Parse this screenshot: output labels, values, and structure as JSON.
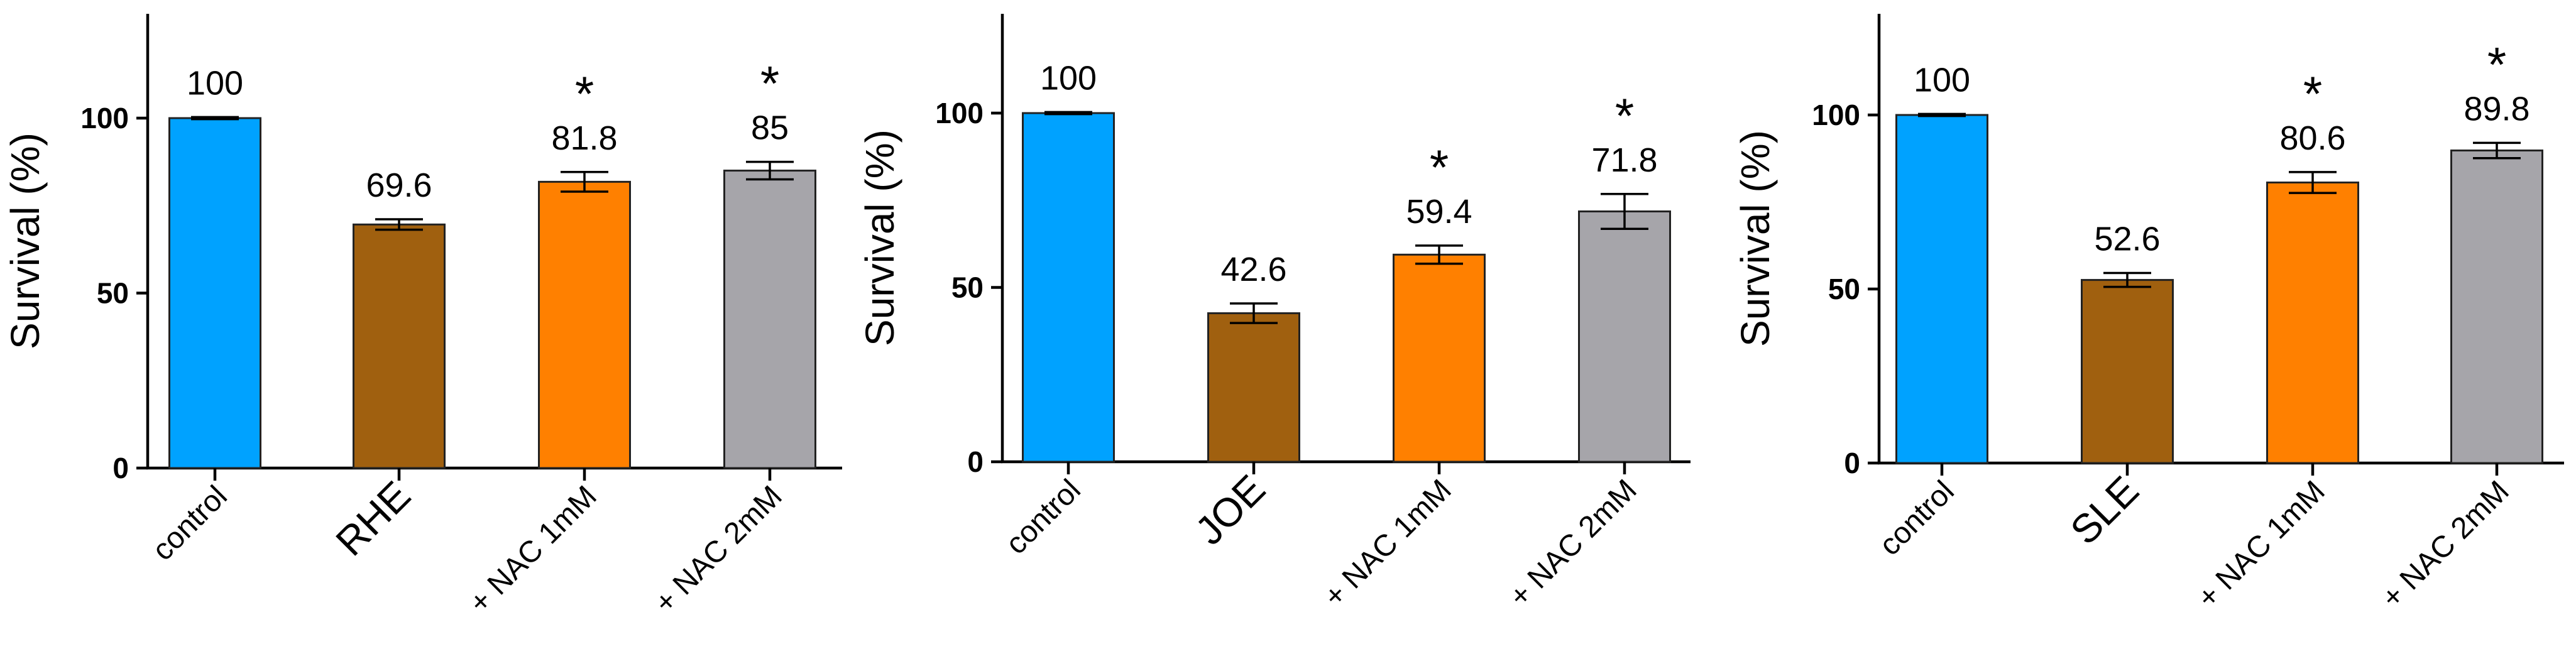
{
  "chart_data": [
    {
      "type": "bar",
      "ylabel": "Survival (%)",
      "ylim": [
        0,
        130
      ],
      "yticks": [
        "0",
        "50",
        "100"
      ],
      "categories": [
        "control",
        "RHE",
        "+ NAC 1mM",
        "+ NAC 2mM"
      ],
      "values": [
        100,
        69.6,
        81.8,
        85
      ],
      "errors": [
        0.3,
        1.5,
        2.8,
        2.5
      ],
      "value_labels": [
        "100",
        "69.6",
        "81.8",
        "85"
      ],
      "significance": [
        "",
        "",
        "*",
        "*"
      ],
      "colors": [
        "#00a2ff",
        "#a0600f",
        "#ff8000",
        "#a6a5aa"
      ]
    },
    {
      "type": "bar",
      "ylabel": "Survival (%)",
      "ylim": [
        0,
        130
      ],
      "yticks": [
        "0",
        "50",
        "100"
      ],
      "categories": [
        "control",
        "JOE",
        "+ NAC 1mM",
        "+ NAC 2mM"
      ],
      "values": [
        100,
        42.6,
        59.4,
        71.8
      ],
      "errors": [
        0.3,
        2.8,
        2.6,
        5.0
      ],
      "value_labels": [
        "100",
        "42.6",
        "59.4",
        "71.8"
      ],
      "significance": [
        "",
        "",
        "*",
        "*"
      ],
      "colors": [
        "#00a2ff",
        "#a0600f",
        "#ff8000",
        "#a6a5aa"
      ]
    },
    {
      "type": "bar",
      "ylabel": "Survival (%)",
      "ylim": [
        0,
        130
      ],
      "yticks": [
        "0",
        "50",
        "100"
      ],
      "categories": [
        "control",
        "SLE",
        "+ NAC 1mM",
        "+ NAC 2mM"
      ],
      "values": [
        100,
        52.6,
        80.6,
        89.8
      ],
      "errors": [
        0.3,
        2.0,
        3.0,
        2.2
      ],
      "value_labels": [
        "100",
        "52.6",
        "80.6",
        "89.8"
      ],
      "significance": [
        "",
        "",
        "*",
        "*"
      ],
      "colors": [
        "#00a2ff",
        "#a0600f",
        "#ff8000",
        "#a6a5aa"
      ]
    }
  ]
}
